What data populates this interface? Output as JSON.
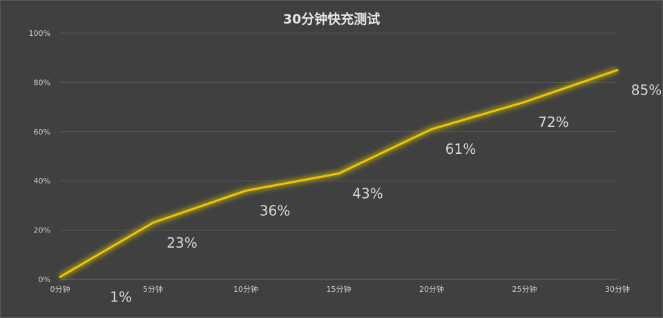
{
  "chart_data": {
    "type": "line",
    "title": "30分钟快充测试",
    "categories": [
      "0分钟",
      "5分钟",
      "10分钟",
      "15分钟",
      "20分钟",
      "25分钟",
      "30分钟"
    ],
    "series": [
      {
        "values": [
          1,
          23,
          36,
          43,
          61,
          72,
          85
        ]
      }
    ],
    "data_labels": [
      "1%",
      "23%",
      "36%",
      "43%",
      "61%",
      "72%",
      "85%"
    ],
    "y_ticks": [
      "0%",
      "20%",
      "40%",
      "60%",
      "80%",
      "100%"
    ],
    "ylim": [
      0,
      100
    ],
    "grid": true,
    "line_color": "#f2c400",
    "glow_color": "#d4c200",
    "background": "#404040",
    "xlabel": "",
    "ylabel": ""
  }
}
